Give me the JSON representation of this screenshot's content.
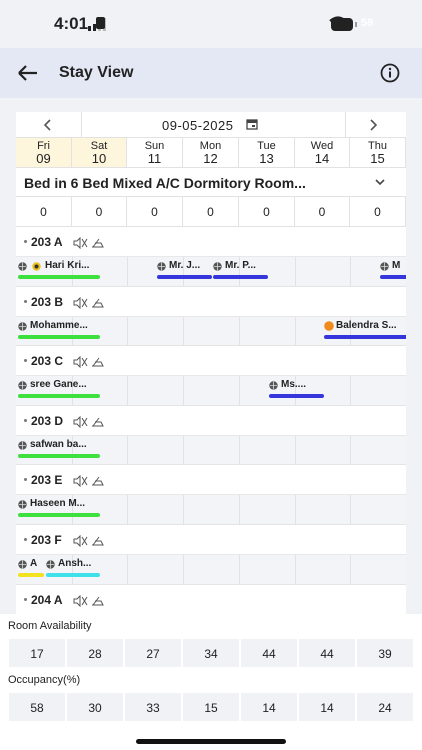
{
  "status_bar": {
    "time": "4:01",
    "battery": "58"
  },
  "header": {
    "title": "Stay View"
  },
  "date_nav": {
    "date": "09-05-2025"
  },
  "days": [
    {
      "name": "Fri",
      "date": "09"
    },
    {
      "name": "Sat",
      "date": "10"
    },
    {
      "name": "Sun",
      "date": "11"
    },
    {
      "name": "Mon",
      "date": "12"
    },
    {
      "name": "Tue",
      "date": "13"
    },
    {
      "name": "Wed",
      "date": "14"
    },
    {
      "name": "Thu",
      "date": "15"
    }
  ],
  "room_type": {
    "name": "Bed in 6 Bed Mixed A/C Dormitory Room...",
    "counts": [
      0,
      0,
      0,
      0,
      0,
      0,
      0
    ]
  },
  "rooms": [
    {
      "name": "203 A",
      "bookings": [
        {
          "guest": "Hari Kri...",
          "color": "#3ee03e"
        },
        {
          "guest": "Mr. J...",
          "color": "#3535dc"
        },
        {
          "guest": "Mr. P...",
          "color": "#3535dc"
        },
        {
          "guest": "M",
          "color": "#3535dc"
        }
      ]
    },
    {
      "name": "203 B",
      "bookings": [
        {
          "guest": "Mohamme...",
          "color": "#3ee03e"
        },
        {
          "guest": "Balendra S...",
          "color": "#3535dc"
        }
      ]
    },
    {
      "name": "203 C",
      "bookings": [
        {
          "guest": "sree Gane...",
          "color": "#3ee03e"
        },
        {
          "guest": "Ms....",
          "color": "#3535dc"
        }
      ]
    },
    {
      "name": "203 D",
      "bookings": [
        {
          "guest": "safwan ba...",
          "color": "#3ee03e"
        }
      ]
    },
    {
      "name": "203 E",
      "bookings": [
        {
          "guest": "Haseen M...",
          "color": "#3ee03e"
        }
      ]
    },
    {
      "name": "203 F",
      "bookings": [
        {
          "guest": "A",
          "color": "#f2e21e"
        },
        {
          "guest": "Ansh...",
          "color": "#3fe0ea"
        }
      ]
    },
    {
      "name": "204 A",
      "bookings": []
    }
  ],
  "room_availability": {
    "label": "Room Availability",
    "values": [
      17,
      28,
      27,
      34,
      44,
      44,
      39
    ]
  },
  "occupancy": {
    "label": "Occupancy(%)",
    "values": [
      58,
      30,
      33,
      15,
      14,
      14,
      24
    ]
  }
}
